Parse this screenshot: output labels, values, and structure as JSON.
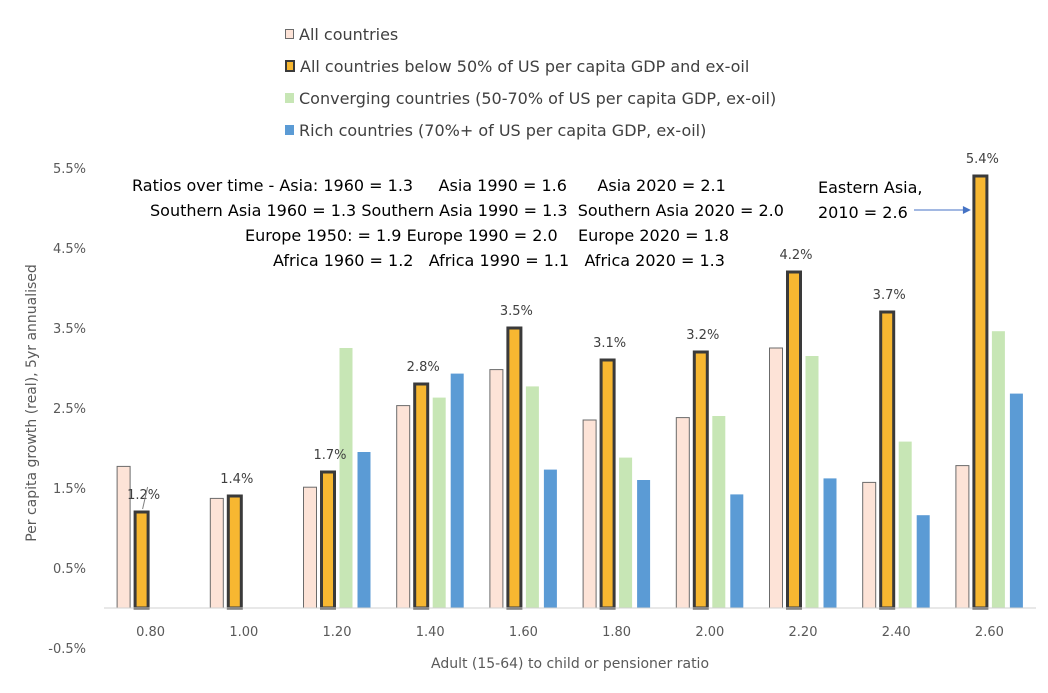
{
  "chart_data": {
    "type": "bar",
    "xlabel": "Adult (15-64) to child or pensioner ratio",
    "ylabel": "Per capita growth (real), 5yr annualised",
    "categories": [
      "0.80",
      "1.00",
      "1.20",
      "1.40",
      "1.60",
      "1.80",
      "2.00",
      "2.20",
      "2.40",
      "2.60"
    ],
    "y_ticks": [
      "-0.5%",
      "0.5%",
      "1.5%",
      "2.5%",
      "3.5%",
      "4.5%",
      "5.5%"
    ],
    "ylim": [
      -0.5,
      5.5
    ],
    "grid": false,
    "legend_position": "top-center",
    "series": [
      {
        "name": "All countries",
        "color": "#fde3d7",
        "values": [
          1.77,
          1.37,
          1.51,
          2.53,
          2.98,
          2.35,
          2.38,
          3.25,
          1.57,
          1.78
        ]
      },
      {
        "name": "All countries below 50% of US per capita GDP and ex-oil",
        "color": "#f7b731",
        "values": [
          1.2,
          1.4,
          1.7,
          2.8,
          3.5,
          3.1,
          3.2,
          4.2,
          3.7,
          5.4
        ],
        "labels": [
          "1.2%",
          "1.4%",
          "1.7%",
          "2.8%",
          "3.5%",
          "3.1%",
          "3.2%",
          "4.2%",
          "3.7%",
          "5.4%"
        ]
      },
      {
        "name": "Converging countries (50-70% of US per capita GDP, ex-oil)",
        "color": "#c7e6b5",
        "values": [
          null,
          null,
          3.25,
          2.63,
          2.77,
          1.88,
          2.4,
          3.15,
          2.08,
          3.46
        ]
      },
      {
        "name": "Rich countries (70%+ of US per capita GDP, ex-oil)",
        "color": "#5b9bd5",
        "values": [
          null,
          null,
          1.95,
          2.93,
          1.73,
          1.6,
          1.42,
          1.62,
          1.16,
          2.68
        ]
      }
    ],
    "annotations": {
      "ratios": [
        "Ratios over time - Asia: 1960 = 1.3     Asia 1990 = 1.6      Asia 2020 = 2.1",
        "Southern Asia 1960 = 1.3 Southern Asia 1990 = 1.3  Southern Asia 2020 = 2.0",
        "Europe 1950: = 1.9 Europe 1990 = 2.0    Europe 2020 = 1.8",
        "Africa 1960 = 1.2   Africa 1990 = 1.1   Africa 2020 = 1.3"
      ],
      "callout": [
        "Eastern Asia,",
        "2010 = 2.6"
      ]
    }
  }
}
